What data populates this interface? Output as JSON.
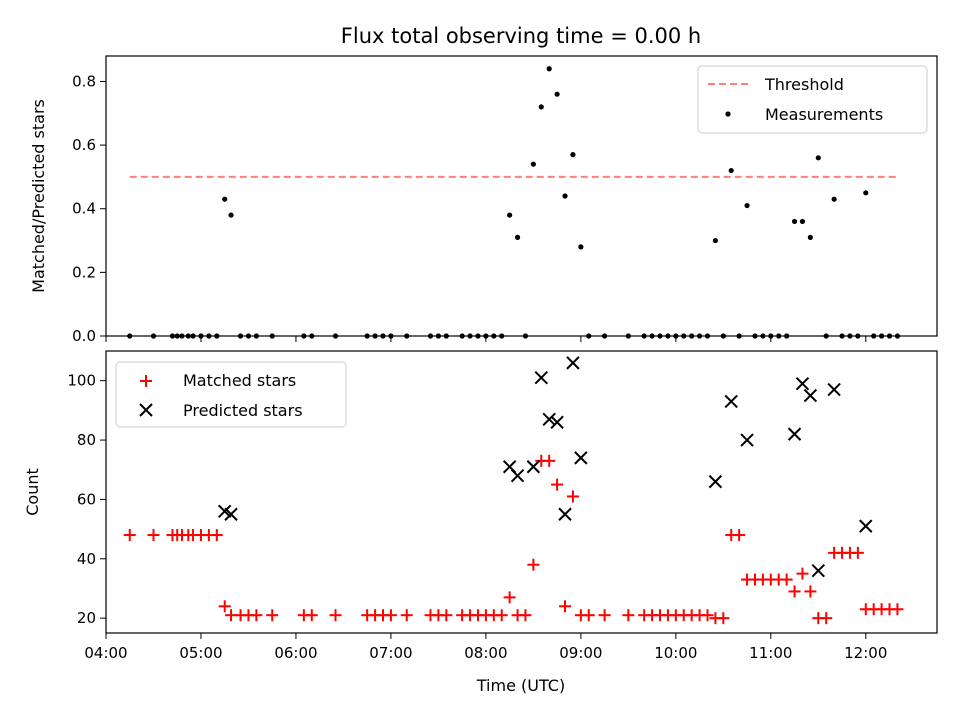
{
  "chart_data": [
    {
      "type": "scatter",
      "title": "Flux total observing time = 0.00 h",
      "xlabel": "",
      "ylabel": "Matched/Predicted stars",
      "xlim": [
        "04:00",
        "12:45"
      ],
      "ylim": [
        0,
        0.88
      ],
      "yticks": [
        "0.0",
        "0.2",
        "0.4",
        "0.6",
        "0.8"
      ],
      "legend_position": "top-right",
      "grid": false,
      "threshold": {
        "name": "Threshold",
        "y": 0.5,
        "x_start": "04:15",
        "x_end": "12:20",
        "color": "#ff7f7f",
        "style": "dashed"
      },
      "series": [
        {
          "name": "Measurements",
          "color": "#000000",
          "points": [
            [
              "04:15",
              0.0
            ],
            [
              "04:30",
              0.0
            ],
            [
              "04:42",
              0.0
            ],
            [
              "04:45",
              0.0
            ],
            [
              "04:48",
              0.0
            ],
            [
              "04:52",
              0.0
            ],
            [
              "04:55",
              0.0
            ],
            [
              "05:00",
              0.0
            ],
            [
              "05:05",
              0.0
            ],
            [
              "05:10",
              0.0
            ],
            [
              "05:15",
              0.43
            ],
            [
              "05:19",
              0.38
            ],
            [
              "05:25",
              0.0
            ],
            [
              "05:30",
              0.0
            ],
            [
              "05:35",
              0.0
            ],
            [
              "05:45",
              0.0
            ],
            [
              "06:05",
              0.0
            ],
            [
              "06:10",
              0.0
            ],
            [
              "06:25",
              0.0
            ],
            [
              "06:45",
              0.0
            ],
            [
              "06:50",
              0.0
            ],
            [
              "06:55",
              0.0
            ],
            [
              "07:00",
              0.0
            ],
            [
              "07:10",
              0.0
            ],
            [
              "07:25",
              0.0
            ],
            [
              "07:30",
              0.0
            ],
            [
              "07:35",
              0.0
            ],
            [
              "07:45",
              0.0
            ],
            [
              "07:50",
              0.0
            ],
            [
              "07:55",
              0.0
            ],
            [
              "08:00",
              0.0
            ],
            [
              "08:05",
              0.0
            ],
            [
              "08:10",
              0.0
            ],
            [
              "08:15",
              0.38
            ],
            [
              "08:20",
              0.31
            ],
            [
              "08:25",
              0.0
            ],
            [
              "08:30",
              0.54
            ],
            [
              "08:35",
              0.72
            ],
            [
              "08:40",
              0.84
            ],
            [
              "08:45",
              0.76
            ],
            [
              "08:50",
              0.44
            ],
            [
              "08:55",
              0.57
            ],
            [
              "09:00",
              0.28
            ],
            [
              "09:05",
              0.0
            ],
            [
              "09:15",
              0.0
            ],
            [
              "09:30",
              0.0
            ],
            [
              "09:40",
              0.0
            ],
            [
              "09:45",
              0.0
            ],
            [
              "09:50",
              0.0
            ],
            [
              "09:55",
              0.0
            ],
            [
              "10:00",
              0.0
            ],
            [
              "10:05",
              0.0
            ],
            [
              "10:10",
              0.0
            ],
            [
              "10:15",
              0.0
            ],
            [
              "10:20",
              0.0
            ],
            [
              "10:25",
              0.3
            ],
            [
              "10:30",
              0.0
            ],
            [
              "10:35",
              0.52
            ],
            [
              "10:40",
              0.0
            ],
            [
              "10:45",
              0.41
            ],
            [
              "10:50",
              0.0
            ],
            [
              "10:55",
              0.0
            ],
            [
              "11:00",
              0.0
            ],
            [
              "11:05",
              0.0
            ],
            [
              "11:10",
              0.0
            ],
            [
              "11:15",
              0.36
            ],
            [
              "11:20",
              0.36
            ],
            [
              "11:25",
              0.31
            ],
            [
              "11:30",
              0.56
            ],
            [
              "11:35",
              0.0
            ],
            [
              "11:40",
              0.43
            ],
            [
              "11:45",
              0.0
            ],
            [
              "11:50",
              0.0
            ],
            [
              "11:55",
              0.0
            ],
            [
              "12:00",
              0.45
            ],
            [
              "12:05",
              0.0
            ],
            [
              "12:10",
              0.0
            ],
            [
              "12:15",
              0.0
            ],
            [
              "12:20",
              0.0
            ]
          ]
        }
      ]
    },
    {
      "type": "scatter",
      "title": "",
      "xlabel": "Time (UTC)",
      "ylabel": "Count",
      "xlim": [
        "04:00",
        "12:45"
      ],
      "ylim": [
        15,
        110
      ],
      "xticks": [
        "04:00",
        "05:00",
        "06:00",
        "07:00",
        "08:00",
        "09:00",
        "10:00",
        "11:00",
        "12:00"
      ],
      "yticks": [
        "20",
        "40",
        "60",
        "80",
        "100"
      ],
      "legend_position": "top-left",
      "grid": false,
      "series": [
        {
          "name": "Matched stars",
          "marker": "plus",
          "color": "#ff0000",
          "points": [
            [
              "04:15",
              48
            ],
            [
              "04:30",
              48
            ],
            [
              "04:42",
              48
            ],
            [
              "04:45",
              48
            ],
            [
              "04:48",
              48
            ],
            [
              "04:52",
              48
            ],
            [
              "04:55",
              48
            ],
            [
              "05:00",
              48
            ],
            [
              "05:05",
              48
            ],
            [
              "05:10",
              48
            ],
            [
              "05:15",
              24
            ],
            [
              "05:19",
              21
            ],
            [
              "05:25",
              21
            ],
            [
              "05:30",
              21
            ],
            [
              "05:35",
              21
            ],
            [
              "05:45",
              21
            ],
            [
              "06:05",
              21
            ],
            [
              "06:10",
              21
            ],
            [
              "06:25",
              21
            ],
            [
              "06:45",
              21
            ],
            [
              "06:50",
              21
            ],
            [
              "06:55",
              21
            ],
            [
              "07:00",
              21
            ],
            [
              "07:10",
              21
            ],
            [
              "07:25",
              21
            ],
            [
              "07:30",
              21
            ],
            [
              "07:35",
              21
            ],
            [
              "07:45",
              21
            ],
            [
              "07:50",
              21
            ],
            [
              "07:55",
              21
            ],
            [
              "08:00",
              21
            ],
            [
              "08:05",
              21
            ],
            [
              "08:10",
              21
            ],
            [
              "08:15",
              27
            ],
            [
              "08:20",
              21
            ],
            [
              "08:25",
              21
            ],
            [
              "08:30",
              38
            ],
            [
              "08:35",
              73
            ],
            [
              "08:40",
              73
            ],
            [
              "08:45",
              65
            ],
            [
              "08:50",
              24
            ],
            [
              "08:55",
              61
            ],
            [
              "09:00",
              21
            ],
            [
              "09:05",
              21
            ],
            [
              "09:15",
              21
            ],
            [
              "09:30",
              21
            ],
            [
              "09:40",
              21
            ],
            [
              "09:45",
              21
            ],
            [
              "09:50",
              21
            ],
            [
              "09:55",
              21
            ],
            [
              "10:00",
              21
            ],
            [
              "10:05",
              21
            ],
            [
              "10:10",
              21
            ],
            [
              "10:15",
              21
            ],
            [
              "10:20",
              21
            ],
            [
              "10:25",
              20
            ],
            [
              "10:30",
              20
            ],
            [
              "10:35",
              48
            ],
            [
              "10:40",
              48
            ],
            [
              "10:45",
              33
            ],
            [
              "10:50",
              33
            ],
            [
              "10:55",
              33
            ],
            [
              "11:00",
              33
            ],
            [
              "11:05",
              33
            ],
            [
              "11:10",
              33
            ],
            [
              "11:15",
              29
            ],
            [
              "11:20",
              35
            ],
            [
              "11:25",
              29
            ],
            [
              "11:30",
              20
            ],
            [
              "11:35",
              20
            ],
            [
              "11:40",
              42
            ],
            [
              "11:45",
              42
            ],
            [
              "11:50",
              42
            ],
            [
              "11:55",
              42
            ],
            [
              "12:00",
              23
            ],
            [
              "12:05",
              23
            ],
            [
              "12:10",
              23
            ],
            [
              "12:15",
              23
            ],
            [
              "12:20",
              23
            ]
          ]
        },
        {
          "name": "Predicted stars",
          "marker": "x",
          "color": "#000000",
          "points": [
            [
              "05:15",
              56
            ],
            [
              "05:19",
              55
            ],
            [
              "08:15",
              71
            ],
            [
              "08:20",
              68
            ],
            [
              "08:30",
              71
            ],
            [
              "08:35",
              101
            ],
            [
              "08:40",
              87
            ],
            [
              "08:45",
              86
            ],
            [
              "08:50",
              55
            ],
            [
              "08:55",
              106
            ],
            [
              "09:00",
              74
            ],
            [
              "10:25",
              66
            ],
            [
              "10:35",
              93
            ],
            [
              "10:45",
              80
            ],
            [
              "11:15",
              82
            ],
            [
              "11:20",
              99
            ],
            [
              "11:25",
              95
            ],
            [
              "11:30",
              36
            ],
            [
              "11:40",
              97
            ],
            [
              "12:00",
              51
            ]
          ]
        }
      ]
    }
  ]
}
